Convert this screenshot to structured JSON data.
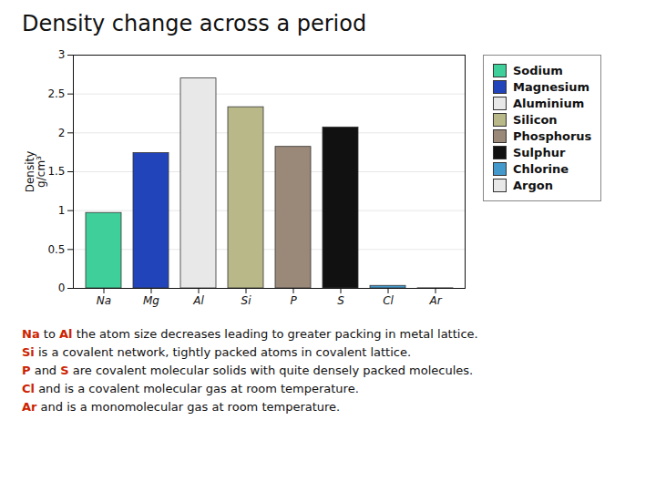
{
  "chart_data": {
    "type": "bar",
    "title": "Density change across a period",
    "categories": [
      "Na",
      "Mg",
      "Al",
      "Si",
      "P",
      "S",
      "Cl",
      "Ar"
    ],
    "values": [
      0.97,
      1.74,
      2.7,
      2.33,
      1.82,
      2.07,
      0.032,
      0.0018
    ],
    "colors": [
      "#3ecf9a",
      "#2244bb",
      "#e8e8e8",
      "#b8b888",
      "#9a8878",
      "#111111",
      "#4499cc",
      "#e8e8e8"
    ],
    "ylabel": "Density\ng/cm³",
    "ylim": [
      0,
      3.0
    ],
    "yticks": [
      0,
      0.5,
      1,
      1.5,
      2,
      2.5,
      3
    ],
    "grid": true,
    "legend": "right",
    "legend_labels": [
      "Sodium",
      "Magnesium",
      "Aluminium",
      "Silicon",
      "Phosphorus",
      "Sulphur",
      "Chlorine",
      "Argon"
    ],
    "annotations": [
      [
        {
          "text": "Na",
          "color": "#cc2200"
        },
        {
          "text": " to "
        },
        {
          "text": "Al",
          "color": "#cc2200"
        },
        {
          "text": " the atom size decreases leading to greater packing in metal lattice."
        }
      ],
      [
        {
          "text": "Si",
          "color": "#cc2200"
        },
        {
          "text": " is a covalent network, tightly packed atoms in covalent lattice."
        }
      ],
      [
        {
          "text": "P",
          "color": "#cc2200"
        },
        {
          "text": " and "
        },
        {
          "text": "S",
          "color": "#cc2200"
        },
        {
          "text": " are covalent molecular solids with quite densely packed molecules."
        }
      ],
      [
        {
          "text": "Cl",
          "color": "#cc2200"
        },
        {
          "text": " and is a covalent molecular gas at room temperature."
        }
      ],
      [
        {
          "text": "Ar",
          "color": "#cc2200"
        },
        {
          "text": " and is a monomolecular gas at room temperature."
        }
      ]
    ]
  }
}
